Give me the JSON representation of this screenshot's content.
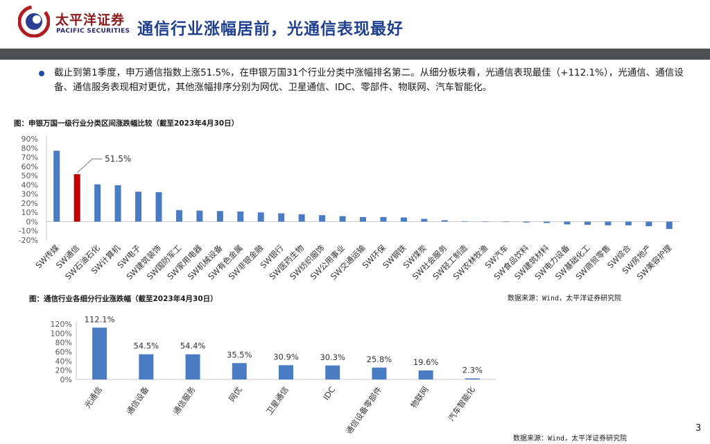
{
  "header": {
    "brand_cn": "太平洋证券",
    "brand_en": "PACIFIC SECURITIES",
    "title": "通信行业涨幅居前，光通信表现最好"
  },
  "bullet": {
    "text": "截止到第1季度，申万通信指数上涨51.5%，在申银万国31个行业分类中涨幅排名第二。从细分板块看，光通信表现最佳（+112.1%），光通信、通信设备、通信服务表现相对更优，其他涨幅排序分别为网优、卫星通信、IDC、零部件、物联网、汽车智能化。"
  },
  "figure1": {
    "title": "图：申银万国一级行业分类区间涨跌幅比较（截至2023年4月30日）",
    "source": "数据来源：Wind，太平洋证券研究院"
  },
  "figure2": {
    "title": "图：通信行业各细分行业涨跌幅（截至2023年4月30日）",
    "source": "数据来源：Wind，太平洋证券研究院"
  },
  "page_number": "3",
  "colors": {
    "bar": "#4a7cc4",
    "highlight": "#c00000",
    "title": "#1f3f8f",
    "header_bar": "#4d4f52"
  },
  "chart_data": [
    {
      "type": "bar",
      "categories": [
        "SW传媒",
        "SW通信",
        "SW石油石化",
        "SW计算机",
        "SW电子",
        "SW建筑装饰",
        "SW国防军工",
        "SW家用电器",
        "SW机械设备",
        "SW有色金属",
        "SW非银金融",
        "SW银行",
        "SW医药生物",
        "SW纺织服饰",
        "SW公用事业",
        "SW交通运输",
        "SW环保",
        "SW钢铁",
        "SW煤炭",
        "SW社会服务",
        "SW轻工制造",
        "SW农林牧渔",
        "SW汽车",
        "SW食品饮料",
        "SW建筑材料",
        "SW电力设备",
        "SW基础化工",
        "SW商贸零售",
        "SW综合",
        "SW房地产",
        "SW美容护理"
      ],
      "values": [
        77,
        51.5,
        40.5,
        39.5,
        32.5,
        32,
        12.5,
        12,
        11.5,
        11,
        10,
        9,
        8,
        7,
        6,
        5,
        5,
        4.5,
        3,
        1.5,
        0.5,
        0,
        -0.5,
        -1,
        -1.5,
        -3,
        -3.5,
        -4,
        -4,
        -5,
        -8
      ],
      "highlight_index": 1,
      "annotation": "51.5%",
      "y_ticks": [
        "90%",
        "80%",
        "70%",
        "60%",
        "50%",
        "40%",
        "30%",
        "20%",
        "10%",
        "0%",
        "-10%",
        "-20%"
      ],
      "ylim": [
        -20,
        90
      ]
    },
    {
      "type": "bar",
      "categories": [
        "光通信",
        "通信设备",
        "通信服务",
        "网优",
        "卫星通信",
        "IDC",
        "通信设备零部件",
        "物联网",
        "汽车智能化"
      ],
      "values": [
        112.1,
        54.5,
        54.4,
        35.5,
        30.9,
        30.3,
        25.8,
        19.6,
        2.3
      ],
      "data_labels": [
        "112.1%",
        "54.5%",
        "54.4%",
        "35.5%",
        "30.9%",
        "30.3%",
        "25.8%",
        "19.6%",
        "2.3%"
      ],
      "y_ticks": [
        "120%",
        "100%",
        "80%",
        "60%",
        "40%",
        "20%",
        "0%"
      ],
      "ylim": [
        0,
        120
      ]
    }
  ]
}
